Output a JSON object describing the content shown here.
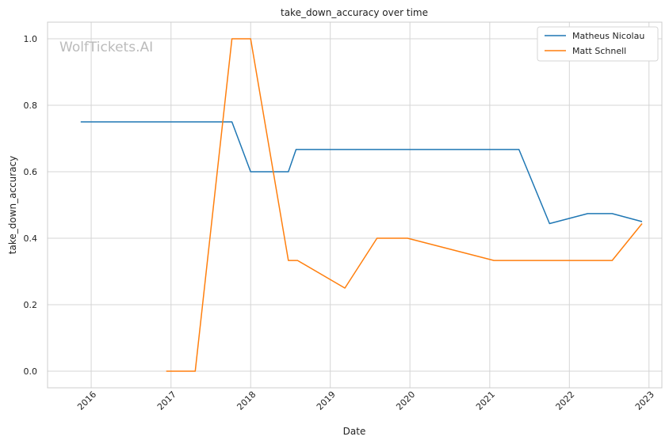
{
  "chart_data": {
    "type": "line",
    "title": "take_down_accuracy over time",
    "xlabel": "Date",
    "ylabel": "take_down_accuracy",
    "watermark": "WolfTickets.AI",
    "grid": true,
    "legend_position": "top-right",
    "x_ticks": [
      "2016",
      "2017",
      "2018",
      "2019",
      "2020",
      "2021",
      "2022",
      "2023"
    ],
    "y_ticks": [
      "0.0",
      "0.2",
      "0.4",
      "0.6",
      "0.8",
      "1.0"
    ],
    "xlim": [
      "2015-06-15",
      "2023-03-01"
    ],
    "ylim": [
      -0.05,
      1.05
    ],
    "series": [
      {
        "name": "Matheus Nicolau",
        "color": "#1f77b4",
        "points": [
          [
            "2015-11-14",
            0.75
          ],
          [
            "2017-10-07",
            0.75
          ],
          [
            "2018-01-01",
            0.6
          ],
          [
            "2018-06-23",
            0.6
          ],
          [
            "2018-07-28",
            0.667
          ],
          [
            "2021-05-15",
            0.667
          ],
          [
            "2021-10-02",
            0.444
          ],
          [
            "2022-03-26",
            0.474
          ],
          [
            "2022-07-16",
            0.474
          ],
          [
            "2022-11-30",
            0.45
          ]
        ]
      },
      {
        "name": "Matt Schnell",
        "color": "#ff7f0e",
        "points": [
          [
            "2016-12-10",
            0.0
          ],
          [
            "2017-04-22",
            0.0
          ],
          [
            "2017-10-07",
            1.0
          ],
          [
            "2018-01-01",
            1.0
          ],
          [
            "2018-06-23",
            0.333
          ],
          [
            "2018-08-04",
            0.333
          ],
          [
            "2019-03-09",
            0.25
          ],
          [
            "2019-08-03",
            0.4
          ],
          [
            "2019-12-21",
            0.4
          ],
          [
            "2021-01-20",
            0.333
          ],
          [
            "2022-07-16",
            0.333
          ],
          [
            "2022-11-30",
            0.444
          ]
        ]
      }
    ]
  }
}
